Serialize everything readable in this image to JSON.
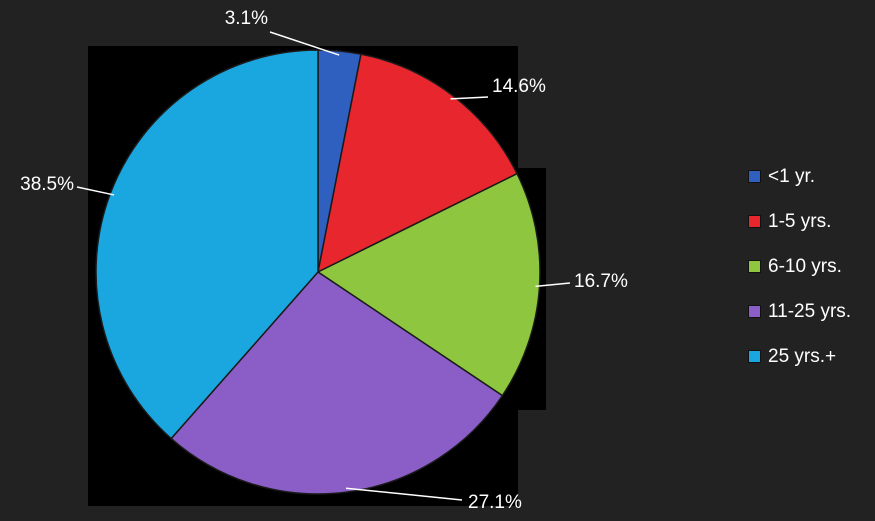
{
  "chart_data": {
    "type": "pie",
    "title": "",
    "categories": [
      "<1 yr.",
      "1-5 yrs.",
      "6-10 yrs.",
      "11-25 yrs.",
      "25 yrs.+"
    ],
    "values": [
      3.1,
      14.6,
      16.7,
      27.1,
      38.5
    ],
    "value_labels": [
      "3.1%",
      "14.6%",
      "16.7%",
      "27.1%",
      "38.5%"
    ],
    "colors": [
      "#2f5fbf",
      "#e8262e",
      "#8ec63f",
      "#8a5dc7",
      "#1aa7e0"
    ],
    "legend_placement": "right",
    "start_angle": "12 o'clock, clockwise"
  },
  "background_color": "#222222"
}
